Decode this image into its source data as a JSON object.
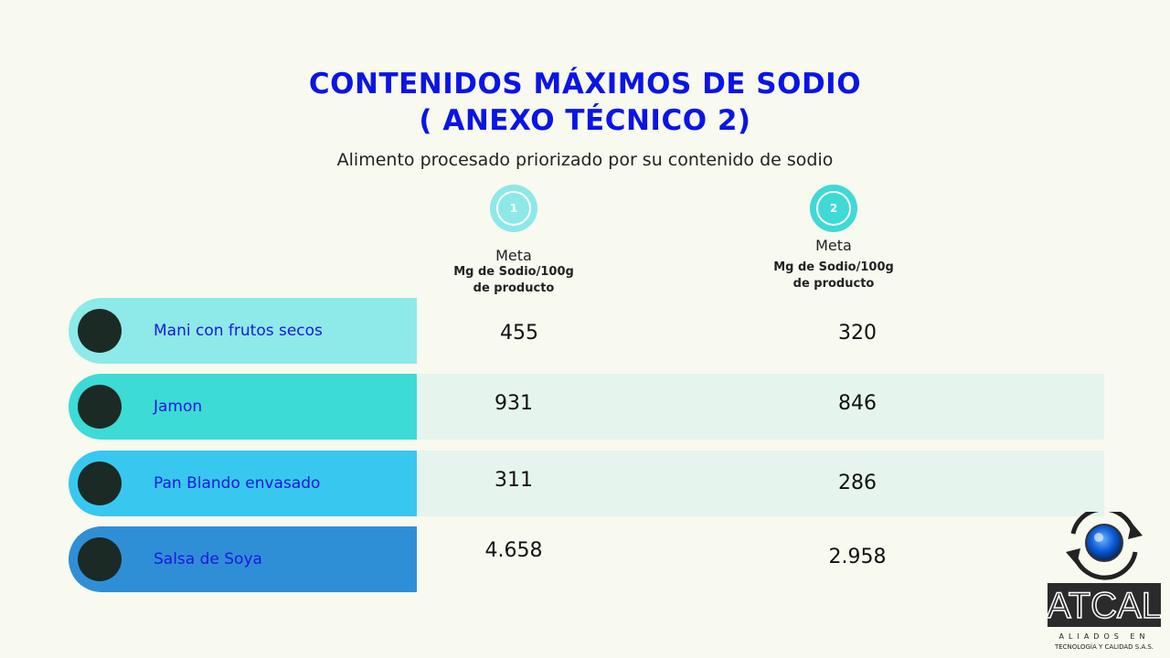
{
  "title_line1": "CONTENIDOS MÁXIMOS DE SODIO",
  "title_line2": "( ANEXO TÉCNICO 2)",
  "subtitle": "Alimento procesado priorizado por su contenido de sodio",
  "columns": [
    {
      "number": "1",
      "meta": "Meta",
      "unit_line1": "Mg de Sodio/100g",
      "unit_line2": "de producto",
      "color": "#8ee8e8"
    },
    {
      "number": "2",
      "meta": "Meta",
      "unit_line1": "Mg de Sodio/100g",
      "unit_line2": "de producto",
      "color": "#3fd9d6"
    }
  ],
  "rows": [
    {
      "label": "Mani con frutos secos",
      "meta1": "455",
      "meta2": "320",
      "color": "#8deae8"
    },
    {
      "label": "Jamon",
      "meta1": "931",
      "meta2": "846",
      "color": "#3ddbd6"
    },
    {
      "label": "Pan Blando envasado",
      "meta1": "311",
      "meta2": "286",
      "color": "#38c8ef"
    },
    {
      "label": "Salsa de Soya",
      "meta1": "4.658",
      "meta2": "2.958",
      "color": "#2f8fd6"
    }
  ],
  "logo": {
    "brand": "ATCAL",
    "tagline1": "ALIADOS EN",
    "tagline2": "TECNOLOGÍA Y CALIDAD S.A.S."
  }
}
